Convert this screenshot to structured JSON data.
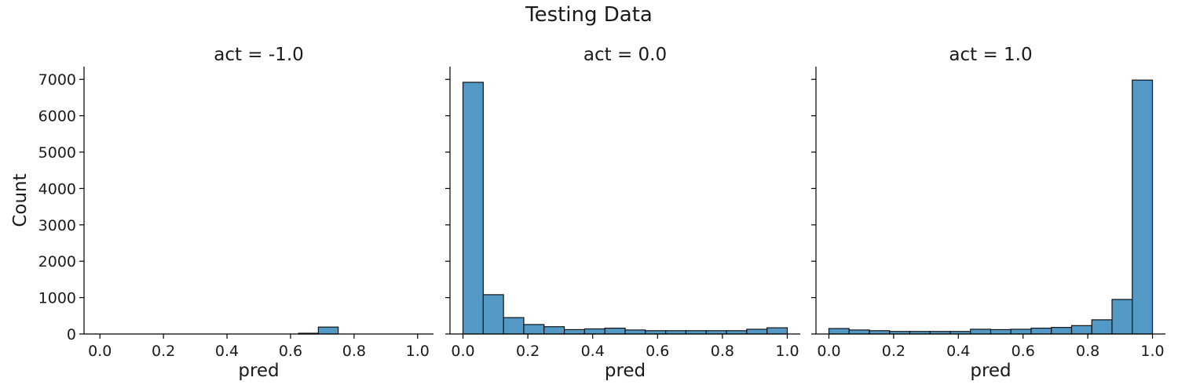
{
  "figure": {
    "title": "Testing Data"
  },
  "chart_data": [
    {
      "type": "bar",
      "subtype": "histogram",
      "title": "act = -1.0",
      "xlabel": "pred",
      "ylabel": "Count",
      "xlim": [
        -0.05,
        1.05
      ],
      "ylim": [
        0,
        7350
      ],
      "xticks": [
        "0.0",
        "0.2",
        "0.4",
        "0.6",
        "0.8",
        "1.0"
      ],
      "yticks": [
        "0",
        "1000",
        "2000",
        "3000",
        "4000",
        "5000",
        "6000",
        "7000"
      ],
      "bins": [
        {
          "x0": 0.625,
          "x1": 0.6875,
          "count": 20
        },
        {
          "x0": 0.6875,
          "x1": 0.75,
          "count": 190
        }
      ],
      "bar_color": "#5299c6",
      "edge_color": "#111111"
    },
    {
      "type": "bar",
      "subtype": "histogram",
      "title": "act = 0.0",
      "xlabel": "pred",
      "ylabel": "",
      "xlim": [
        -0.04,
        1.04
      ],
      "ylim": [
        0,
        7350
      ],
      "xticks": [
        "0.0",
        "0.2",
        "0.4",
        "0.6",
        "0.8",
        "1.0"
      ],
      "bins": [
        {
          "x0": 0.0,
          "x1": 0.0625,
          "count": 6920
        },
        {
          "x0": 0.0625,
          "x1": 0.125,
          "count": 1080
        },
        {
          "x0": 0.125,
          "x1": 0.1875,
          "count": 450
        },
        {
          "x0": 0.1875,
          "x1": 0.25,
          "count": 260
        },
        {
          "x0": 0.25,
          "x1": 0.3125,
          "count": 200
        },
        {
          "x0": 0.3125,
          "x1": 0.375,
          "count": 120
        },
        {
          "x0": 0.375,
          "x1": 0.4375,
          "count": 140
        },
        {
          "x0": 0.4375,
          "x1": 0.5,
          "count": 160
        },
        {
          "x0": 0.5,
          "x1": 0.5625,
          "count": 110
        },
        {
          "x0": 0.5625,
          "x1": 0.625,
          "count": 90
        },
        {
          "x0": 0.625,
          "x1": 0.6875,
          "count": 90
        },
        {
          "x0": 0.6875,
          "x1": 0.75,
          "count": 90
        },
        {
          "x0": 0.75,
          "x1": 0.8125,
          "count": 90
        },
        {
          "x0": 0.8125,
          "x1": 0.875,
          "count": 90
        },
        {
          "x0": 0.875,
          "x1": 0.9375,
          "count": 130
        },
        {
          "x0": 0.9375,
          "x1": 1.0,
          "count": 170
        }
      ],
      "bar_color": "#5299c6",
      "edge_color": "#111111"
    },
    {
      "type": "bar",
      "subtype": "histogram",
      "title": "act = 1.0",
      "xlabel": "pred",
      "ylabel": "",
      "xlim": [
        -0.04,
        1.04
      ],
      "ylim": [
        0,
        7350
      ],
      "xticks": [
        "0.0",
        "0.2",
        "0.4",
        "0.6",
        "0.8",
        "1.0"
      ],
      "bins": [
        {
          "x0": 0.0,
          "x1": 0.0625,
          "count": 150
        },
        {
          "x0": 0.0625,
          "x1": 0.125,
          "count": 110
        },
        {
          "x0": 0.125,
          "x1": 0.1875,
          "count": 90
        },
        {
          "x0": 0.1875,
          "x1": 0.25,
          "count": 70
        },
        {
          "x0": 0.25,
          "x1": 0.3125,
          "count": 70
        },
        {
          "x0": 0.3125,
          "x1": 0.375,
          "count": 70
        },
        {
          "x0": 0.375,
          "x1": 0.4375,
          "count": 70
        },
        {
          "x0": 0.4375,
          "x1": 0.5,
          "count": 130
        },
        {
          "x0": 0.5,
          "x1": 0.5625,
          "count": 120
        },
        {
          "x0": 0.5625,
          "x1": 0.625,
          "count": 130
        },
        {
          "x0": 0.625,
          "x1": 0.6875,
          "count": 160
        },
        {
          "x0": 0.6875,
          "x1": 0.75,
          "count": 180
        },
        {
          "x0": 0.75,
          "x1": 0.8125,
          "count": 230
        },
        {
          "x0": 0.8125,
          "x1": 0.875,
          "count": 390
        },
        {
          "x0": 0.875,
          "x1": 0.9375,
          "count": 950
        },
        {
          "x0": 0.9375,
          "x1": 1.0,
          "count": 6980
        }
      ],
      "bar_color": "#5299c6",
      "edge_color": "#111111"
    }
  ]
}
